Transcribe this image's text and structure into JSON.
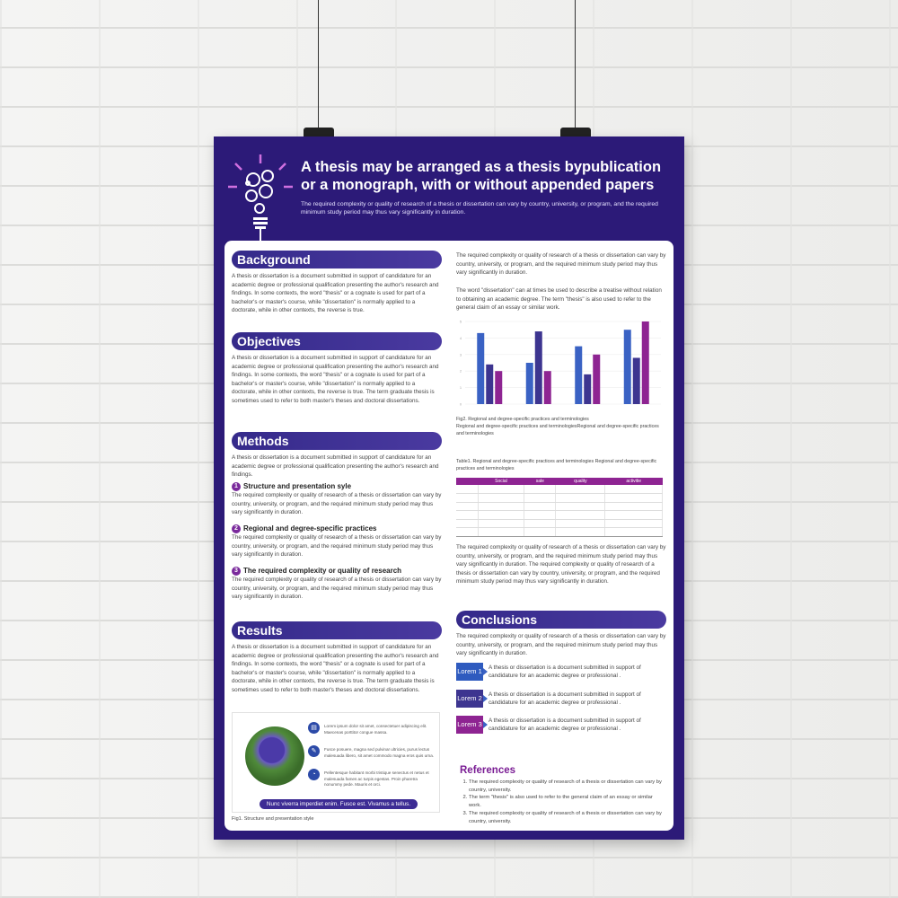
{
  "header": {
    "title": "A thesis may be arranged as a thesis bypublication or a monograph, with or without appended papers",
    "subtitle": "The required complexity or quality of research of a thesis or dissertation can vary by country, university, or program, and the required minimum study period may thus vary significantly in duration.",
    "icon": "lightbulb-gears-icon"
  },
  "background": {
    "heading": "Background",
    "text": "A thesis or dissertation is a document submitted in support of candidature for an academic degree or professional qualification presenting the author's research and findings. In some contexts, the word \"thesis\" or a cognate is used for part of a bachelor's or master's course, while \"dissertation\" is normally applied to a doctorate, while in other contexts, the reverse is true."
  },
  "objectives": {
    "heading": "Objectives",
    "text": "A thesis or dissertation is a document submitted in support of candidature for an academic degree or professional qualification presenting the author's research and findings. In some contexts, the word \"thesis\" or a cognate is used for part of a bachelor's or master's course, while \"dissertation\" is normally applied to a doctorate, while in other contexts, the reverse is true. The term graduate thesis is sometimes used to refer to both master's theses and doctoral dissertations."
  },
  "methods": {
    "heading": "Methods",
    "intro": "A thesis or dissertation is a document submitted in support of candidature for an academic degree or professional qualification presenting the author's research and findings.",
    "items": [
      {
        "num": "1",
        "title": "Structure and presentation syle",
        "text": "The required complexity or quality of research of a thesis or dissertation can vary by country, university, or program, and the required minimum study period may thus vary significantly in duration."
      },
      {
        "num": "2",
        "title": "Regional and degree-specific practices",
        "text": "The required complexity or quality of research of a thesis or dissertation can vary by country, university, or program, and the required minimum study period may thus vary significantly in duration."
      },
      {
        "num": "3",
        "title": "The required complexity or quality of research",
        "text": "The required complexity or quality of research of a thesis or dissertation can vary by country, university, or program, and the required minimum study period may thus vary significantly in duration."
      }
    ]
  },
  "results": {
    "heading": "Results",
    "text": "A thesis or dissertation is a document submitted in support of candidature for an academic degree or professional qualification presenting the author's research and findings. In some contexts, the word \"thesis\" or a cognate is used for part of a bachelor's or master's course, while \"dissertation\" is normally applied to a doctorate, while in other contexts, the reverse is true. The term graduate thesis is sometimes used to refer to both master's theses and doctoral dissertations.",
    "figure": {
      "items": [
        {
          "icon": "document-icon",
          "text": "Lorem ipsum dolor sit amet, consectetuer adipiscing elit. Maecenas porttitor congue massa."
        },
        {
          "icon": "pen-icon",
          "text": "Fusce posuere, magna sed pulvinar ultricies, purus lectus malesuada libero, sit amet commodo magna eros quis urna."
        },
        {
          "icon": "clock-icon",
          "text": "Pellentesque habitant morbi tristique senectus et netus et malesuada fames ac turpis egestas. Proin pharetra nonummy pede. Mauris et orci."
        }
      ],
      "banner": "Nunc viverra imperdiet enim. Fusce est. Vivamus a tellus.",
      "caption": "Fig1. Structure and presentation style"
    }
  },
  "right": {
    "para1": "The required complexity or quality of research of a thesis or dissertation can vary by country, university, or program, and the required minimum study period may thus vary significantly in duration.",
    "para2": "The word \"dissertation\" can at times be used to describe a treatise without relation to obtaining an academic degree. The term \"thesis\" is also used to refer to the general claim of an essay or similar work.",
    "fig2_caption": "Fig2. Regional and degree-specific practices and terminologies",
    "fig2_desc": "Regional and degree-specific practices and terminologiesRegional and degree-specific practices and terminologies",
    "table_caption": "Table1. Regional and degree-specific practices and terminologies Regional and degree-specific practices and terminologies",
    "table_headers": [
      "",
      "Social",
      "sale",
      "quality",
      "activitie"
    ],
    "para3": "The required complexity or quality of research of a thesis or dissertation can vary by country, university, or program, and the required minimum study period may thus vary significantly in duration. The required complexity or quality of research of a thesis or dissertation can vary by country, university, or program, and the required minimum study period may thus vary significantly in duration."
  },
  "conclusions": {
    "heading": "Conclusions",
    "text": "The required complexity or quality of research of a thesis or dissertation can vary by country, university, or program, and the required minimum study period may thus vary significantly in duration.",
    "items": [
      {
        "tag": "Lorem 1",
        "color": "#2f5bbf",
        "text": "A thesis or dissertation is a document submitted in support of candidature for an academic degree or professional ."
      },
      {
        "tag": "Lorem 2",
        "color": "#3d3590",
        "text": "A thesis or dissertation is a document submitted in support of candidature for an academic degree or professional ."
      },
      {
        "tag": "Lorem 3",
        "color": "#8e2492",
        "text": "A thesis or dissertation is a document submitted in support of candidature for an academic degree or professional ."
      }
    ]
  },
  "references": {
    "heading": "References",
    "items": [
      "The required complexity or quality of research of a thesis or dissertation can vary by country, university.",
      "The term \"thesis\" is also used to refer to the general claim of an essay or similar work.",
      "The required complexity or quality of research of a thesis or dissertation can vary by country, university."
    ]
  },
  "chart_data": {
    "type": "bar",
    "categories": [
      "",
      "",
      "",
      ""
    ],
    "ylim": [
      0,
      5
    ],
    "yticks": [
      0,
      1,
      2,
      3,
      4,
      5
    ],
    "grid": true,
    "series": [
      {
        "values": [
          4.3,
          2.5,
          3.5,
          4.5
        ],
        "color": "#3a62c4"
      },
      {
        "values": [
          2.4,
          4.4,
          1.8,
          2.8
        ],
        "color": "#3d3590"
      },
      {
        "values": [
          2.0,
          2.0,
          3.0,
          5.0
        ],
        "color": "#8e2492"
      }
    ]
  }
}
